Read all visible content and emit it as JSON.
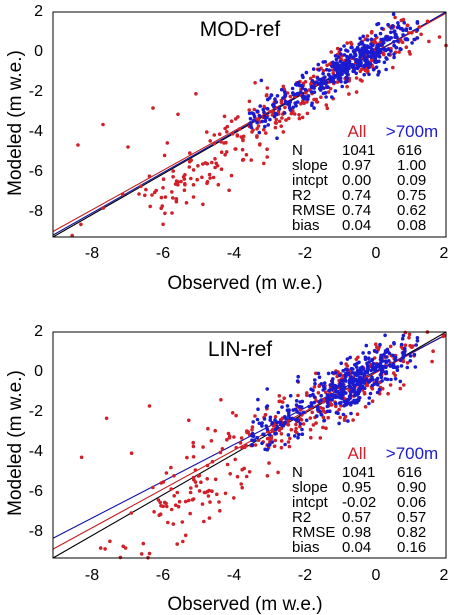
{
  "colors": {
    "all": "#d0202a",
    "high": "#1a1ad0",
    "fit_all": "#c02020",
    "fit_high": "#1010a0",
    "one_to_one": "#000000",
    "axis": "#000000"
  },
  "chart_data": [
    {
      "type": "scatter",
      "title": "MOD-ref",
      "xlabel": "Observed (m w.e.)",
      "ylabel": "Modeled (m w.e.)",
      "xlim": [
        -9,
        2
      ],
      "ylim": [
        -9,
        2
      ],
      "xticks": [
        "-8",
        "-6",
        "-4",
        "-2",
        "0",
        "2"
      ],
      "yticks": [
        "2",
        "0",
        "-2",
        "-4",
        "-6",
        "-8"
      ],
      "grid": false,
      "legend_position": "bottom-right",
      "series": [
        {
          "name": "All",
          "color": "#d0202a",
          "slope": 0.97,
          "intercept": 0.0,
          "points_sample": [
            [
              -8.3,
              -4.5
            ],
            [
              -7.6,
              -3.5
            ],
            [
              -6.9,
              -4.6
            ],
            [
              -6.2,
              -2.7
            ],
            [
              -5.8,
              -4.4
            ],
            [
              -5.5,
              -3.0
            ],
            [
              -5.0,
              -2.0
            ],
            [
              -4.6,
              -4.3
            ],
            [
              -4.2,
              -3.1
            ],
            [
              -3.9,
              -4.7
            ],
            [
              -3.5,
              -3.6
            ],
            [
              -3.1,
              -5.4
            ],
            [
              -2.8,
              -2.4
            ],
            [
              -2.4,
              -3.2
            ],
            [
              -2.0,
              -1.6
            ],
            [
              -1.6,
              -2.4
            ],
            [
              -1.2,
              -1.2
            ],
            [
              -0.8,
              -0.6
            ],
            [
              -0.4,
              -0.9
            ],
            [
              0.0,
              -0.3
            ],
            [
              0.4,
              0.2
            ]
          ]
        },
        {
          "name": ">700m",
          "color": "#1a1ad0",
          "slope": 1.0,
          "intercept": 0.09,
          "points_sample": [
            [
              -3.2,
              -2.6
            ],
            [
              -2.6,
              -1.8
            ],
            [
              -2.0,
              -2.2
            ],
            [
              -1.5,
              -1.3
            ],
            [
              -1.0,
              -0.6
            ],
            [
              -0.6,
              -0.9
            ],
            [
              -0.2,
              0.0
            ],
            [
              0.2,
              0.4
            ],
            [
              0.6,
              0.9
            ],
            [
              1.0,
              1.2
            ]
          ]
        }
      ],
      "stats": {
        "headers": [
          "All",
          ">700m"
        ],
        "rows": [
          {
            "label": "N",
            "all": "1041",
            "high": "616"
          },
          {
            "label": "slope",
            "all": "0.97",
            "high": "1.00"
          },
          {
            "label": "intcpt",
            "all": "0.00",
            "high": "0.09"
          },
          {
            "label": "R2",
            "all": "0.74",
            "high": "0.75"
          },
          {
            "label": "RMSE",
            "all": "0.74",
            "high": "0.62"
          },
          {
            "label": "bias",
            "all": "0.04",
            "high": "0.08"
          }
        ]
      }
    },
    {
      "type": "scatter",
      "title": "LIN-ref",
      "xlabel": "Observed (m w.e.)",
      "ylabel": "Modeled (m w.e.)",
      "xlim": [
        -9,
        2
      ],
      "ylim": [
        -9,
        2
      ],
      "xticks": [
        "-8",
        "-6",
        "-4",
        "-2",
        "0",
        "2"
      ],
      "yticks": [
        "2",
        "0",
        "-2",
        "-4",
        "-6",
        "-8"
      ],
      "grid": false,
      "legend_position": "bottom-right",
      "series": [
        {
          "name": "All",
          "color": "#d0202a",
          "slope": 0.95,
          "intercept": -0.02,
          "points_sample": [
            [
              -8.2,
              -4.1
            ],
            [
              -7.5,
              -2.2
            ],
            [
              -6.8,
              -3.9
            ],
            [
              -6.3,
              -1.6
            ],
            [
              -5.7,
              -4.6
            ],
            [
              -5.2,
              -2.3
            ],
            [
              -4.8,
              -3.6
            ],
            [
              -4.3,
              -1.3
            ],
            [
              -3.9,
              -4.2
            ],
            [
              -3.5,
              -3.0
            ],
            [
              -3.0,
              -5.0
            ],
            [
              -2.6,
              -3.3
            ],
            [
              -2.2,
              -2.5
            ],
            [
              -1.8,
              -1.7
            ],
            [
              -1.4,
              -2.3
            ],
            [
              -1.0,
              -1.0
            ],
            [
              -0.6,
              -1.4
            ],
            [
              -0.2,
              -0.6
            ],
            [
              0.2,
              -0.1
            ]
          ]
        },
        {
          "name": ">700m",
          "color": "#1a1ad0",
          "slope": 0.9,
          "intercept": 0.06,
          "points_sample": [
            [
              -3.0,
              -1.6
            ],
            [
              -2.4,
              -1.9
            ],
            [
              -1.8,
              -1.1
            ],
            [
              -1.3,
              -1.6
            ],
            [
              -0.9,
              -0.7
            ],
            [
              -0.4,
              -0.3
            ],
            [
              0.0,
              0.2
            ],
            [
              0.4,
              0.6
            ],
            [
              0.8,
              1.0
            ]
          ]
        }
      ],
      "stats": {
        "headers": [
          "All",
          ">700m"
        ],
        "rows": [
          {
            "label": "N",
            "all": "1041",
            "high": "616"
          },
          {
            "label": "slope",
            "all": "0.95",
            "high": "0.90"
          },
          {
            "label": "intcpt",
            "all": "-0.02",
            "high": "0.06"
          },
          {
            "label": "R2",
            "all": "0.57",
            "high": "0.57"
          },
          {
            "label": "RMSE",
            "all": "0.98",
            "high": "0.82"
          },
          {
            "label": "bias",
            "all": "0.04",
            "high": "0.16"
          }
        ]
      }
    }
  ]
}
